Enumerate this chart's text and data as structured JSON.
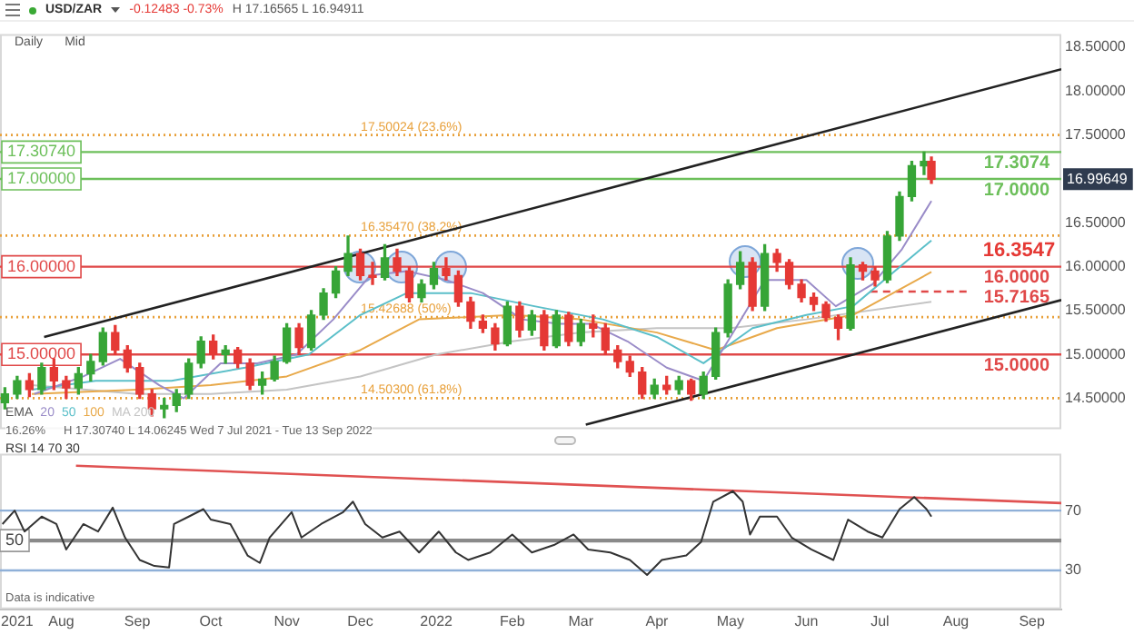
{
  "chart_data": [
    {
      "type": "candlestick",
      "title": "USD/ZAR",
      "subtitle": "-0.12483 -0.73%",
      "annotations": [
        "H 17.16565 L 16.94911",
        "Daily",
        "Mid",
        "16.26%",
        "H 17.30740 L 14.06245 Wed 7 Jul 2021 - Tue 13 Sep 2022",
        "16.99649",
        {
          "text": "17.30740",
          "y": 17.3074
        },
        {
          "text": "17.00000",
          "y": 17
        },
        {
          "text": "16.00000",
          "y": 16
        },
        {
          "text": "15.00000",
          "y": 15
        },
        {
          "text": "16.3547",
          "x": "2022-08-12",
          "y": 16.3547
        }
      ],
      "x": [
        "2021-07-09",
        "2021-07-14",
        "2021-07-19",
        "2021-07-24",
        "2021-07-29",
        "2021-08-03",
        "2021-08-08",
        "2021-08-13",
        "2021-08-18",
        "2021-08-23",
        "2021-08-28",
        "2021-09-02",
        "2021-09-07",
        "2021-09-12",
        "2021-09-17",
        "2021-09-22",
        "2021-09-27",
        "2021-10-02",
        "2021-10-07",
        "2021-10-12",
        "2021-10-17",
        "2021-10-22",
        "2021-10-27",
        "2021-11-01",
        "2021-11-06",
        "2021-11-11",
        "2021-11-16",
        "2021-11-21",
        "2021-11-26",
        "2021-12-01",
        "2021-12-06",
        "2021-12-11",
        "2021-12-16",
        "2021-12-21",
        "2021-12-26",
        "2021-12-31",
        "2022-01-05",
        "2022-01-10",
        "2022-01-15",
        "2022-01-20",
        "2022-01-25",
        "2022-01-30",
        "2022-02-04",
        "2022-02-09",
        "2022-02-14",
        "2022-02-19",
        "2022-02-24",
        "2022-03-01",
        "2022-03-06",
        "2022-03-11",
        "2022-03-16",
        "2022-03-21",
        "2022-03-26",
        "2022-03-31",
        "2022-04-05",
        "2022-04-10",
        "2022-04-15",
        "2022-04-20",
        "2022-04-25",
        "2022-04-30",
        "2022-05-05",
        "2022-05-10",
        "2022-05-15",
        "2022-05-20",
        "2022-05-25",
        "2022-05-30",
        "2022-06-04",
        "2022-06-09",
        "2022-06-14",
        "2022-06-19",
        "2022-06-24",
        "2022-06-29",
        "2022-07-04",
        "2022-07-09",
        "2022-07-14",
        "2022-07-19",
        "2022-07-22"
      ],
      "ohlc": [
        [
          14.45,
          14.62,
          14.38,
          14.55
        ],
        [
          14.55,
          14.75,
          14.5,
          14.7
        ],
        [
          14.7,
          14.78,
          14.52,
          14.6
        ],
        [
          14.6,
          14.9,
          14.55,
          14.85
        ],
        [
          14.85,
          14.95,
          14.6,
          14.7
        ],
        [
          14.7,
          14.75,
          14.5,
          14.62
        ],
        [
          14.62,
          14.85,
          14.55,
          14.78
        ],
        [
          14.78,
          15.0,
          14.7,
          14.92
        ],
        [
          14.92,
          15.3,
          14.88,
          15.25
        ],
        [
          15.25,
          15.33,
          15.0,
          15.05
        ],
        [
          15.05,
          15.1,
          14.8,
          14.85
        ],
        [
          14.85,
          14.9,
          14.5,
          14.55
        ],
        [
          14.55,
          14.6,
          14.3,
          14.38
        ],
        [
          14.38,
          14.5,
          14.28,
          14.42
        ],
        [
          14.42,
          14.6,
          14.35,
          14.55
        ],
        [
          14.55,
          14.95,
          14.5,
          14.9
        ],
        [
          14.9,
          15.2,
          14.85,
          15.15
        ],
        [
          15.15,
          15.22,
          14.95,
          15.0
        ],
        [
          15.0,
          15.1,
          14.9,
          15.05
        ],
        [
          15.05,
          15.08,
          14.85,
          14.9
        ],
        [
          14.9,
          14.95,
          14.6,
          14.65
        ],
        [
          14.65,
          14.8,
          14.55,
          14.72
        ],
        [
          14.72,
          14.98,
          14.7,
          14.92
        ],
        [
          14.92,
          15.35,
          14.9,
          15.3
        ],
        [
          15.3,
          15.35,
          15.0,
          15.08
        ],
        [
          15.08,
          15.5,
          15.05,
          15.45
        ],
        [
          15.45,
          15.75,
          15.4,
          15.7
        ],
        [
          15.7,
          16.0,
          15.65,
          15.95
        ],
        [
          15.95,
          16.35,
          15.9,
          16.15
        ],
        [
          16.15,
          16.2,
          15.85,
          15.9
        ],
        [
          15.9,
          16.05,
          15.8,
          15.88
        ],
        [
          15.88,
          16.25,
          15.85,
          16.1
        ],
        [
          16.1,
          16.2,
          15.9,
          15.95
        ],
        [
          15.95,
          16.0,
          15.6,
          15.65
        ],
        [
          15.65,
          15.85,
          15.6,
          15.8
        ],
        [
          15.8,
          16.05,
          15.75,
          15.98
        ],
        [
          15.98,
          16.1,
          15.85,
          15.9
        ],
        [
          15.9,
          15.95,
          15.55,
          15.6
        ],
        [
          15.6,
          15.65,
          15.3,
          15.38
        ],
        [
          15.38,
          15.45,
          15.25,
          15.3
        ],
        [
          15.3,
          15.35,
          15.05,
          15.12
        ],
        [
          15.12,
          15.6,
          15.1,
          15.55
        ],
        [
          15.55,
          15.6,
          15.2,
          15.28
        ],
        [
          15.28,
          15.5,
          15.22,
          15.45
        ],
        [
          15.45,
          15.5,
          15.05,
          15.1
        ],
        [
          15.1,
          15.5,
          15.08,
          15.45
        ],
        [
          15.45,
          15.48,
          15.1,
          15.15
        ],
        [
          15.15,
          15.4,
          15.1,
          15.35
        ],
        [
          15.35,
          15.45,
          15.2,
          15.3
        ],
        [
          15.3,
          15.35,
          15.0,
          15.05
        ],
        [
          15.05,
          15.1,
          14.85,
          14.92
        ],
        [
          14.92,
          14.98,
          14.75,
          14.8
        ],
        [
          14.8,
          14.85,
          14.5,
          14.55
        ],
        [
          14.55,
          14.72,
          14.5,
          14.65
        ],
        [
          14.65,
          14.75,
          14.55,
          14.6
        ],
        [
          14.6,
          14.75,
          14.55,
          14.7
        ],
        [
          14.7,
          14.72,
          14.48,
          14.55
        ],
        [
          14.55,
          14.8,
          14.5,
          14.75
        ],
        [
          14.75,
          15.3,
          14.72,
          15.25
        ],
        [
          15.25,
          15.85,
          15.2,
          15.8
        ],
        [
          15.8,
          16.17,
          15.75,
          16.05
        ],
        [
          16.05,
          16.1,
          15.5,
          15.55
        ],
        [
          15.55,
          16.25,
          15.5,
          16.15
        ],
        [
          16.15,
          16.2,
          15.95,
          16.05
        ],
        [
          16.05,
          16.08,
          15.75,
          15.8
        ],
        [
          15.8,
          15.85,
          15.6,
          15.65
        ],
        [
          15.65,
          15.7,
          15.5,
          15.57
        ],
        [
          15.57,
          15.6,
          15.38,
          15.42
        ],
        [
          15.42,
          15.45,
          15.17,
          15.3
        ],
        [
          15.3,
          16.1,
          15.28,
          16.02
        ],
        [
          16.02,
          16.05,
          15.85,
          15.95
        ],
        [
          15.95,
          16.0,
          15.78,
          15.85
        ],
        [
          15.85,
          16.4,
          15.82,
          16.35
        ],
        [
          16.35,
          16.85,
          16.3,
          16.8
        ],
        [
          16.8,
          17.2,
          16.75,
          17.15
        ],
        [
          17.15,
          17.3074,
          17.05,
          17.2
        ],
        [
          17.2,
          17.25,
          16.95,
          16.99649
        ]
      ],
      "series": [
        {
          "type": "line",
          "name": "20",
          "color": "#9a8cc8",
          "x": [
            "2021-07-21",
            "2021-08-10",
            "2021-08-25",
            "2021-09-10",
            "2021-09-20",
            "2021-10-05",
            "2021-10-20",
            "2021-11-05",
            "2021-11-20",
            "2021-12-05",
            "2021-12-20",
            "2022-01-05",
            "2022-01-20",
            "2022-02-05",
            "2022-02-20",
            "2022-03-05",
            "2022-03-20",
            "2022-04-05",
            "2022-04-20",
            "2022-05-01",
            "2022-05-15",
            "2022-06-01",
            "2022-06-13",
            "2022-06-28",
            "2022-07-10",
            "2022-07-22"
          ],
          "values": [
            14.55,
            14.75,
            14.95,
            14.65,
            14.5,
            14.9,
            14.9,
            15.0,
            15.4,
            15.9,
            15.95,
            15.85,
            15.7,
            15.4,
            15.35,
            15.35,
            15.15,
            14.85,
            14.7,
            15.2,
            15.85,
            15.85,
            15.55,
            15.8,
            16.2,
            16.75
          ]
        },
        {
          "type": "line",
          "name": "50",
          "color": "#5bbfc9",
          "x": [
            "2021-07-20",
            "2021-08-15",
            "2021-09-15",
            "2021-10-15",
            "2021-11-10",
            "2021-12-01",
            "2021-12-20",
            "2022-01-15",
            "2022-02-10",
            "2022-03-10",
            "2022-04-01",
            "2022-04-20",
            "2022-05-10",
            "2022-06-01",
            "2022-06-20",
            "2022-07-22"
          ],
          "values": [
            14.6,
            14.7,
            14.7,
            14.85,
            15.0,
            15.45,
            15.7,
            15.7,
            15.55,
            15.4,
            15.2,
            14.9,
            15.3,
            15.45,
            15.55,
            16.3
          ]
        },
        {
          "type": "line",
          "name": "100",
          "color": "#e8a94a",
          "x": [
            "2021-07-20",
            "2021-09-01",
            "2021-10-01",
            "2021-11-01",
            "2021-12-01",
            "2021-12-25",
            "2022-02-01",
            "2022-03-01",
            "2022-04-01",
            "2022-04-25",
            "2022-05-20",
            "2022-06-20",
            "2022-07-22"
          ],
          "values": [
            14.55,
            14.6,
            14.65,
            14.75,
            15.05,
            15.4,
            15.45,
            15.4,
            15.25,
            15.05,
            15.3,
            15.45,
            15.94
          ]
        },
        {
          "type": "line",
          "name": "MA 200",
          "color": "#c4c4c4",
          "x": [
            "2021-07-20",
            "2021-09-01",
            "2021-10-01",
            "2021-11-01",
            "2021-12-01",
            "2022-01-01",
            "2022-02-01",
            "2022-03-01",
            "2022-04-01",
            "2022-05-01",
            "2022-06-01",
            "2022-07-22"
          ],
          "values": [
            14.65,
            14.55,
            14.55,
            14.6,
            14.75,
            15.0,
            15.15,
            15.25,
            15.3,
            15.3,
            15.4,
            15.6
          ]
        },
        {
          "type": "line",
          "color": "#222222",
          "x": [
            "2021-07-25",
            "2022-09-13"
          ],
          "values": [
            15.2,
            18.25
          ]
        },
        {
          "type": "line",
          "color": "#222222",
          "x": [
            "2022-03-03",
            "2022-09-13"
          ],
          "values": [
            14.2,
            15.62
          ]
        }
      ],
      "legend_title": "EMA",
      "legend": "bottom left",
      "ref_lines": [
        {
          "axis": "y",
          "value": 17.3074,
          "label": "17.3074",
          "color": "#6cbf5a",
          "line_style": "solid"
        },
        {
          "axis": "y",
          "value": 17,
          "label": "17.0000",
          "color": "#6cbf5a",
          "line_style": "solid"
        },
        {
          "axis": "y",
          "value": 16,
          "label": "16.0000",
          "color": "#e04848",
          "line_style": "solid"
        },
        {
          "axis": "y",
          "value": 15,
          "label": "15.0000",
          "color": "#e04848",
          "line_style": "solid"
        },
        {
          "axis": "y",
          "value": 15.7165,
          "label": "15.7165",
          "color": "#e04848",
          "line_style": "dashed"
        },
        {
          "axis": "y",
          "value": 17.50024,
          "label": "17.50024 (23.6%)",
          "color": "#e8a03a",
          "line_style": "dotted"
        },
        {
          "axis": "y",
          "value": 16.3547,
          "label": "16.35470 (38.2%)",
          "color": "#e8a03a",
          "line_style": "dotted"
        },
        {
          "axis": "y",
          "value": 15.42688,
          "label": "15.42688 (50%)",
          "color": "#e8a03a",
          "line_style": "dotted"
        },
        {
          "axis": "y",
          "value": 14.503,
          "label": "14.50300 (61.8%)",
          "color": "#e8a03a",
          "line_style": "dotted"
        }
      ],
      "xlim": [
        "2021-07-07",
        "2022-09-13"
      ],
      "ylim": [
        14.15,
        18.65
      ],
      "yticks": [
        {
          "value": 14.5,
          "label": "14.50000"
        },
        {
          "value": 15,
          "label": "15.00000"
        },
        {
          "value": 15.5,
          "label": "15.50000"
        },
        {
          "value": 16,
          "label": "16.00000"
        },
        {
          "value": 16.5,
          "label": "16.50000"
        },
        {
          "value": 17.5,
          "label": "17.50000"
        },
        {
          "value": 18,
          "label": "18.00000"
        },
        {
          "value": 18.5,
          "label": "18.50000"
        }
      ],
      "tick_labels": "y"
    },
    {
      "type": "line",
      "annotations": [
        "Data is indicative"
      ],
      "series": [
        {
          "name": "RSI 14 70 30",
          "color": "#333333",
          "x": [
            "2021-07-08",
            "2021-07-13",
            "2021-07-17",
            "2021-07-24",
            "2021-07-30",
            "2021-08-03",
            "2021-08-10",
            "2021-08-16",
            "2021-08-22",
            "2021-08-27",
            "2021-09-02",
            "2021-09-08",
            "2021-09-14",
            "2021-09-16",
            "2021-09-22",
            "2021-09-28",
            "2021-10-01",
            "2021-10-09",
            "2021-10-16",
            "2021-10-21",
            "2021-10-25",
            "2021-11-03",
            "2021-11-07",
            "2021-11-15",
            "2021-11-24",
            "2021-11-28",
            "2021-12-03",
            "2021-12-10",
            "2021-12-17",
            "2021-12-25",
            "2022-01-02",
            "2022-01-09",
            "2022-01-14",
            "2022-01-23",
            "2022-02-01",
            "2022-02-09",
            "2022-02-18",
            "2022-02-26",
            "2022-03-04",
            "2022-03-13",
            "2022-03-21",
            "2022-03-28",
            "2022-04-03",
            "2022-04-13",
            "2022-04-19",
            "2022-04-24",
            "2022-05-02",
            "2022-05-06",
            "2022-05-09",
            "2022-05-13",
            "2022-05-20",
            "2022-05-26",
            "2022-06-03",
            "2022-06-12",
            "2022-06-18",
            "2022-06-26",
            "2022-07-02",
            "2022-07-09",
            "2022-07-15",
            "2022-07-20",
            "2022-07-22"
          ],
          "values": [
            61,
            70,
            56,
            66,
            61,
            44,
            61,
            56,
            72,
            52,
            37,
            33,
            32,
            61,
            66,
            71,
            64,
            61,
            40,
            35,
            52,
            69,
            52,
            61,
            69,
            76,
            61,
            52,
            56,
            42,
            56,
            42,
            37,
            42,
            54,
            42,
            47,
            54,
            44,
            42,
            37,
            27,
            37,
            40,
            49,
            76,
            83,
            76,
            54,
            66,
            66,
            52,
            44,
            37,
            64,
            56,
            52,
            71,
            79,
            71,
            66
          ]
        },
        {
          "color": "#e05252",
          "x": [
            "2021-08-07",
            "2022-09-13"
          ],
          "values": [
            100,
            75
          ]
        }
      ],
      "legend": "top left",
      "ref_lines": [
        {
          "axis": "y",
          "value": 70,
          "color": "#8fb0d8",
          "line_style": "solid"
        },
        {
          "axis": "y",
          "value": 30,
          "color": "#8fb0d8",
          "line_style": "solid"
        },
        {
          "axis": "y",
          "value": 50,
          "label": "50",
          "color": "#8a8a8a",
          "line_style": "solid"
        }
      ],
      "xlim": [
        "2021-07-07",
        "2022-09-13"
      ],
      "xticks": [
        {
          "value": "2021-07-14",
          "label": "2021"
        },
        {
          "value": "2021-08-01",
          "label": "Aug"
        },
        {
          "value": "2021-09-01",
          "label": "Sep"
        },
        {
          "value": "2021-10-01",
          "label": "Oct"
        },
        {
          "value": "2021-11-01",
          "label": "Nov"
        },
        {
          "value": "2021-12-01",
          "label": "Dec"
        },
        {
          "value": "2022-01-01",
          "label": "2022"
        },
        {
          "value": "2022-02-01",
          "label": "Feb"
        },
        {
          "value": "2022-03-01",
          "label": "Mar"
        },
        {
          "value": "2022-04-01",
          "label": "Apr"
        },
        {
          "value": "2022-05-01",
          "label": "May"
        },
        {
          "value": "2022-06-01",
          "label": "Jun"
        },
        {
          "value": "2022-07-01",
          "label": "Jul"
        },
        {
          "value": "2022-08-01",
          "label": "Aug"
        },
        {
          "value": "2022-09-01",
          "label": "Sep"
        }
      ],
      "ylim": [
        4,
        108
      ],
      "yticks": [
        30,
        70
      ]
    }
  ]
}
